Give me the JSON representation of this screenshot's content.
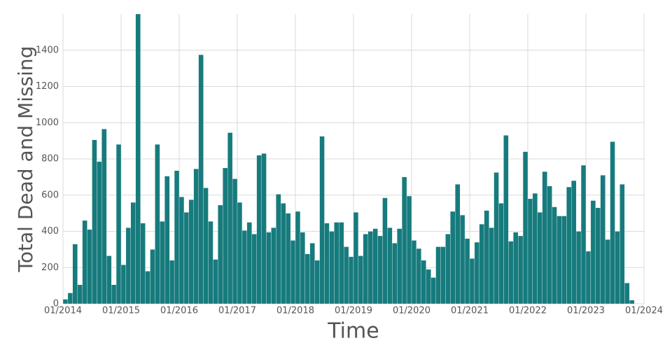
{
  "chart_data": {
    "type": "bar",
    "x_label": "Time",
    "y_label": "Total Dead and Missing",
    "color": "#177b7d",
    "grid": true,
    "x": [
      "2014-01",
      "2014-02",
      "2014-03",
      "2014-04",
      "2014-05",
      "2014-06",
      "2014-07",
      "2014-08",
      "2014-09",
      "2014-10",
      "2014-11",
      "2014-12",
      "2015-01",
      "2015-02",
      "2015-03",
      "2015-04",
      "2015-05",
      "2015-06",
      "2015-07",
      "2015-08",
      "2015-09",
      "2015-10",
      "2015-11",
      "2015-12",
      "2016-01",
      "2016-02",
      "2016-03",
      "2016-04",
      "2016-05",
      "2016-06",
      "2016-07",
      "2016-08",
      "2016-09",
      "2016-10",
      "2016-11",
      "2016-12",
      "2017-01",
      "2017-02",
      "2017-03",
      "2017-04",
      "2017-05",
      "2017-06",
      "2017-07",
      "2017-08",
      "2017-09",
      "2017-10",
      "2017-11",
      "2017-12",
      "2018-01",
      "2018-02",
      "2018-03",
      "2018-04",
      "2018-05",
      "2018-06",
      "2018-07",
      "2018-08",
      "2018-09",
      "2018-10",
      "2018-11",
      "2018-12",
      "2019-01",
      "2019-02",
      "2019-03",
      "2019-04",
      "2019-05",
      "2019-06",
      "2019-07",
      "2019-08",
      "2019-09",
      "2019-10",
      "2019-11",
      "2019-12",
      "2020-01",
      "2020-02",
      "2020-03",
      "2020-04",
      "2020-05",
      "2020-06",
      "2020-07",
      "2020-08",
      "2020-09",
      "2020-10",
      "2020-11",
      "2020-12",
      "2021-01",
      "2021-02",
      "2021-03",
      "2021-04",
      "2021-05",
      "2021-06",
      "2021-07",
      "2021-08",
      "2021-09",
      "2021-10",
      "2021-11",
      "2021-12",
      "2022-01",
      "2022-02",
      "2022-03",
      "2022-04",
      "2022-05",
      "2022-06",
      "2022-07",
      "2022-08",
      "2022-09",
      "2022-10",
      "2022-11",
      "2022-12",
      "2023-01",
      "2023-02",
      "2023-03",
      "2023-04",
      "2023-05",
      "2023-06",
      "2023-07",
      "2023-08",
      "2023-09",
      "2023-10"
    ],
    "values": [
      25,
      60,
      330,
      105,
      460,
      410,
      905,
      785,
      965,
      265,
      105,
      880,
      215,
      420,
      560,
      1600,
      445,
      180,
      300,
      880,
      455,
      705,
      240,
      735,
      590,
      505,
      575,
      745,
      1375,
      640,
      455,
      245,
      545,
      750,
      945,
      690,
      560,
      405,
      450,
      385,
      820,
      830,
      395,
      420,
      605,
      555,
      500,
      350,
      510,
      395,
      275,
      335,
      240,
      925,
      445,
      400,
      450,
      450,
      315,
      260,
      505,
      265,
      385,
      400,
      415,
      375,
      585,
      420,
      335,
      415,
      700,
      595,
      350,
      305,
      240,
      190,
      145,
      315,
      315,
      385,
      510,
      660,
      490,
      360,
      250,
      340,
      440,
      515,
      420,
      725,
      555,
      930,
      345,
      395,
      375,
      840,
      580,
      610,
      505,
      730,
      650,
      535,
      485,
      485,
      645,
      680,
      400,
      765,
      290,
      570,
      530,
      710,
      355,
      895,
      400,
      660,
      115,
      20
    ],
    "xlim": [
      "2014-01",
      "2024-01"
    ],
    "xticks": [
      {
        "value": "2014-01",
        "label": "01/2014"
      },
      {
        "value": "2015-01",
        "label": "01/2015"
      },
      {
        "value": "2016-01",
        "label": "01/2016"
      },
      {
        "value": "2017-01",
        "label": "01/2017"
      },
      {
        "value": "2018-01",
        "label": "01/2018"
      },
      {
        "value": "2019-01",
        "label": "01/2019"
      },
      {
        "value": "2020-01",
        "label": "01/2020"
      },
      {
        "value": "2021-01",
        "label": "01/2021"
      },
      {
        "value": "2022-01",
        "label": "01/2022"
      },
      {
        "value": "2023-01",
        "label": "01/2023"
      },
      {
        "value": "2024-01",
        "label": "01/2024"
      }
    ],
    "ylim": [
      0,
      1600
    ],
    "yticks": [
      0,
      200,
      400,
      600,
      800,
      1000,
      1200,
      1400
    ]
  }
}
